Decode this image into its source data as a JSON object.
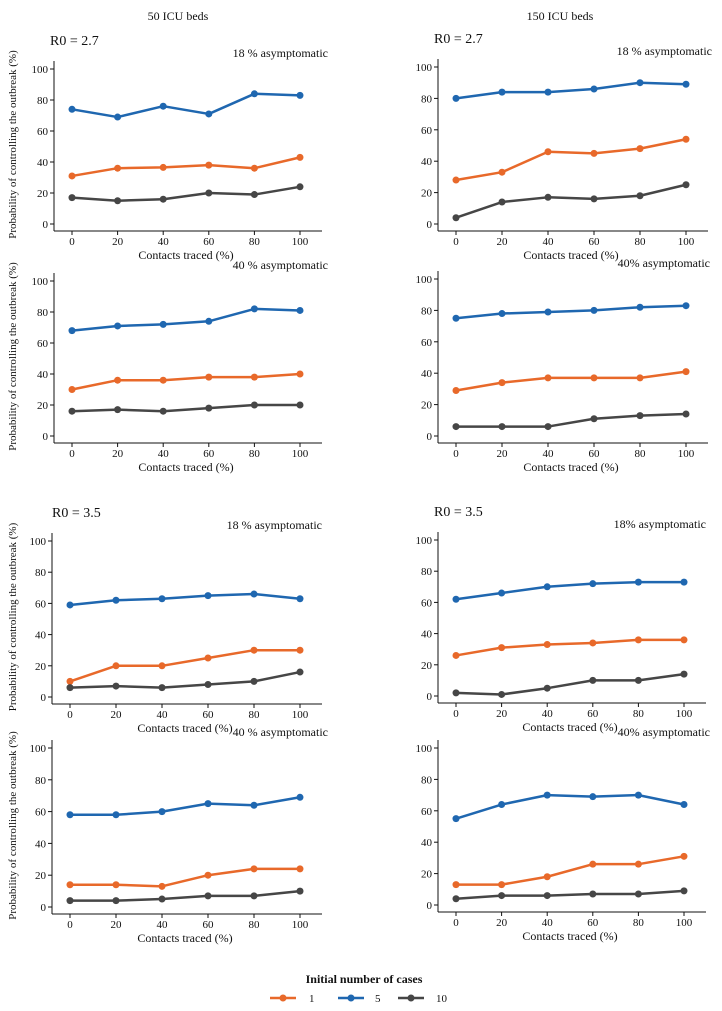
{
  "colors": {
    "series_1": "#E8692A",
    "series_5": "#1F67B0",
    "series_10": "#464646",
    "axis": "#111111"
  },
  "column_headers": [
    "50 ICU beds",
    "150 ICU beds"
  ],
  "legend": {
    "title": "Initial number of cases",
    "items": [
      "1",
      "5",
      "10"
    ]
  },
  "chart_data": [
    {
      "type": "line",
      "r0_label": "R0 = 2.7",
      "panel_title": "18 % asymptomatic",
      "xlabel": "Contacts traced (%)",
      "ylabel": "Probability of controlling the outbreak (%)",
      "x": [
        0,
        20,
        40,
        60,
        80,
        100
      ],
      "ylim": [
        0,
        100
      ],
      "xticks": [
        "0",
        "20",
        "40",
        "60",
        "80",
        "100"
      ],
      "yticks": [
        "0",
        "20",
        "40",
        "60",
        "80",
        "100"
      ],
      "series": [
        {
          "name": "1",
          "values": [
            31,
            36,
            36.5,
            38,
            36,
            43
          ]
        },
        {
          "name": "5",
          "values": [
            74,
            69,
            76,
            71,
            84,
            83
          ]
        },
        {
          "name": "10",
          "values": [
            17,
            15,
            16,
            20,
            19,
            24
          ]
        }
      ]
    },
    {
      "type": "line",
      "r0_label": "R0 = 2.7",
      "panel_title": "18 % asymptomatic",
      "xlabel": "Contacts traced (%)",
      "ylabel": "",
      "x": [
        0,
        20,
        40,
        60,
        80,
        100
      ],
      "ylim": [
        0,
        100
      ],
      "xticks": [
        "0",
        "20",
        "40",
        "60",
        "80",
        "100"
      ],
      "yticks": [
        "0",
        "20",
        "40",
        "60",
        "80",
        "100"
      ],
      "series": [
        {
          "name": "1",
          "values": [
            28,
            33,
            46,
            45,
            48,
            54
          ]
        },
        {
          "name": "5",
          "values": [
            80,
            84,
            84,
            86,
            90,
            89
          ]
        },
        {
          "name": "10",
          "values": [
            4,
            14,
            17,
            16,
            18,
            25
          ]
        }
      ]
    },
    {
      "type": "line",
      "r0_label": "",
      "panel_title": "40 % asymptomatic",
      "xlabel": "Contacts traced (%)",
      "ylabel": "Probability of controlling the outbreak (%)",
      "x": [
        0,
        20,
        40,
        60,
        80,
        100
      ],
      "ylim": [
        0,
        100
      ],
      "xticks": [
        "0",
        "20",
        "40",
        "60",
        "80",
        "100"
      ],
      "yticks": [
        "0",
        "20",
        "40",
        "60",
        "80",
        "100"
      ],
      "series": [
        {
          "name": "1",
          "values": [
            30,
            36,
            36,
            38,
            38,
            40
          ]
        },
        {
          "name": "5",
          "values": [
            68,
            71,
            72,
            74,
            82,
            81
          ]
        },
        {
          "name": "10",
          "values": [
            16,
            17,
            16,
            18,
            20,
            20
          ]
        }
      ]
    },
    {
      "type": "line",
      "r0_label": "",
      "panel_title": "40% asymptomatic",
      "xlabel": "Contacts traced (%)",
      "ylabel": "",
      "x": [
        0,
        20,
        40,
        60,
        80,
        100
      ],
      "ylim": [
        0,
        100
      ],
      "xticks": [
        "0",
        "20",
        "40",
        "60",
        "80",
        "100"
      ],
      "yticks": [
        "0",
        "20",
        "40",
        "60",
        "80",
        "100"
      ],
      "series": [
        {
          "name": "1",
          "values": [
            29,
            34,
            37,
            37,
            37,
            41
          ]
        },
        {
          "name": "5",
          "values": [
            75,
            78,
            79,
            80,
            82,
            83
          ]
        },
        {
          "name": "10",
          "values": [
            6,
            6,
            6,
            11,
            13,
            14
          ]
        }
      ]
    },
    {
      "type": "line",
      "r0_label": "R0 = 3.5",
      "panel_title": "18 % asymptomatic",
      "xlabel": "Contacts traced (%)",
      "ylabel": "Probability of controlling the outbreak (%)",
      "x": [
        0,
        20,
        40,
        60,
        80,
        100
      ],
      "ylim": [
        0,
        100
      ],
      "xticks": [
        "0",
        "20",
        "40",
        "60",
        "80",
        "100"
      ],
      "yticks": [
        "0",
        "20",
        "40",
        "60",
        "80",
        "100"
      ],
      "series": [
        {
          "name": "1",
          "values": [
            10,
            20,
            20,
            25,
            30,
            30
          ]
        },
        {
          "name": "5",
          "values": [
            59,
            62,
            63,
            65,
            66,
            63
          ]
        },
        {
          "name": "10",
          "values": [
            6,
            7,
            6,
            8,
            10,
            16
          ]
        }
      ]
    },
    {
      "type": "line",
      "r0_label": "R0 = 3.5",
      "panel_title": "18% asymptomatic",
      "xlabel": "Contacts traced (%)",
      "ylabel": "",
      "x": [
        0,
        20,
        40,
        60,
        80,
        100
      ],
      "ylim": [
        0,
        100
      ],
      "xticks": [
        "0",
        "20",
        "40",
        "60",
        "80",
        "100"
      ],
      "yticks": [
        "0",
        "20",
        "40",
        "60",
        "80",
        "100"
      ],
      "series": [
        {
          "name": "1",
          "values": [
            26,
            31,
            33,
            34,
            36,
            36
          ]
        },
        {
          "name": "5",
          "values": [
            62,
            66,
            70,
            72,
            73,
            73
          ]
        },
        {
          "name": "10",
          "values": [
            2,
            1,
            5,
            10,
            10,
            14
          ]
        }
      ]
    },
    {
      "type": "line",
      "r0_label": "",
      "panel_title": "40 % asymptomatic",
      "xlabel": "Contacts traced (%)",
      "ylabel": "Probability of controlling the outbreak (%)",
      "x": [
        0,
        20,
        40,
        60,
        80,
        100
      ],
      "ylim": [
        0,
        100
      ],
      "xticks": [
        "0",
        "20",
        "40",
        "60",
        "80",
        "100"
      ],
      "yticks": [
        "0",
        "20",
        "40",
        "60",
        "80",
        "100"
      ],
      "series": [
        {
          "name": "1",
          "values": [
            14,
            14,
            13,
            20,
            24,
            24
          ]
        },
        {
          "name": "5",
          "values": [
            58,
            58,
            60,
            65,
            64,
            69
          ]
        },
        {
          "name": "10",
          "values": [
            4,
            4,
            5,
            7,
            7,
            10
          ]
        }
      ]
    },
    {
      "type": "line",
      "r0_label": "",
      "panel_title": "40% asymptomatic",
      "xlabel": "Contacts traced (%)",
      "ylabel": "",
      "x": [
        0,
        20,
        40,
        60,
        80,
        100
      ],
      "ylim": [
        0,
        100
      ],
      "xticks": [
        "0",
        "20",
        "40",
        "60",
        "80",
        "100"
      ],
      "yticks": [
        "0",
        "20",
        "40",
        "60",
        "80",
        "100"
      ],
      "series": [
        {
          "name": "1",
          "values": [
            13,
            13,
            18,
            26,
            26,
            31
          ]
        },
        {
          "name": "5",
          "values": [
            55,
            64,
            70,
            69,
            70,
            64
          ]
        },
        {
          "name": "10",
          "values": [
            4,
            6,
            6,
            7,
            7,
            9
          ]
        }
      ]
    }
  ]
}
